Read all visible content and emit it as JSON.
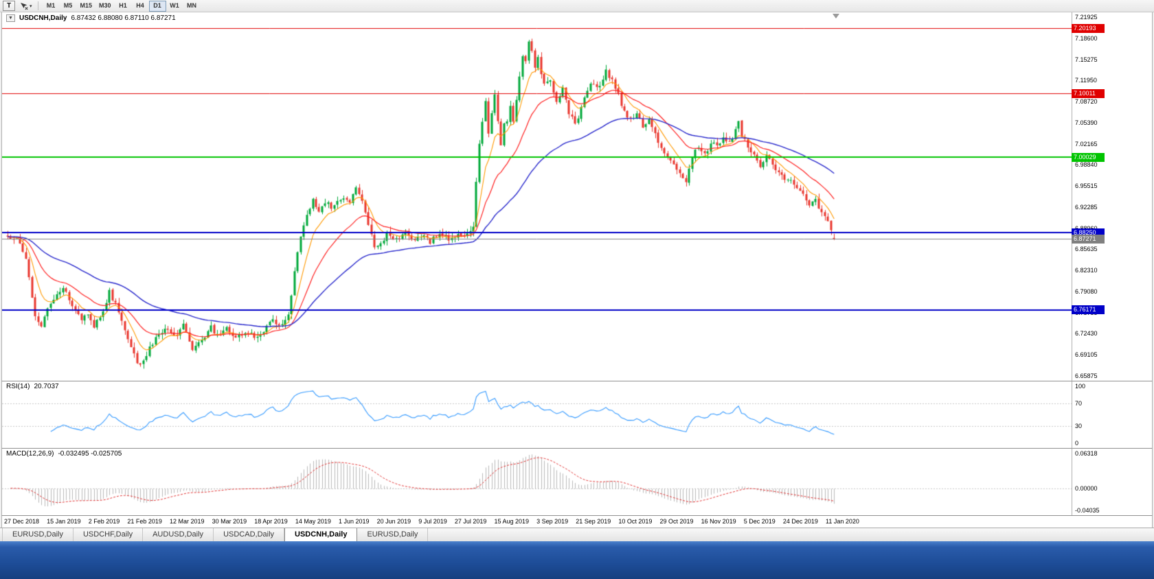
{
  "toolbar": {
    "t_button": "T",
    "cursor_dropdown": "▾",
    "timeframes": [
      {
        "label": "M1",
        "active": false
      },
      {
        "label": "M5",
        "active": false
      },
      {
        "label": "M15",
        "active": false
      },
      {
        "label": "M30",
        "active": false
      },
      {
        "label": "H1",
        "active": false
      },
      {
        "label": "H4",
        "active": false
      },
      {
        "label": "D1",
        "active": true
      },
      {
        "label": "W1",
        "active": false
      },
      {
        "label": "MN",
        "active": false
      }
    ]
  },
  "chart": {
    "collapse_glyph": "▼",
    "title": "USDCNH,Daily",
    "ohlc_text": "6.87432 6.88080 6.87110 6.87271"
  },
  "rsi": {
    "label": "RSI(14)",
    "value": "20.7037",
    "axis_labels": [
      "100",
      "70",
      "30",
      "0"
    ],
    "axis_values": [
      100,
      70,
      30,
      0
    ]
  },
  "macd": {
    "label": "MACD(12,26,9)",
    "values": "-0.032495 -0.025705",
    "axis_labels": [
      "0.06318",
      "0.00000",
      "-0.04035"
    ],
    "axis_values": [
      0.06318,
      0,
      -0.04035
    ]
  },
  "tabs": [
    {
      "label": "EURUSD,Daily",
      "active": false
    },
    {
      "label": "USDCHF,Daily",
      "active": false
    },
    {
      "label": "AUDUSD,Daily",
      "active": false
    },
    {
      "label": "USDCAD,Daily",
      "active": false
    },
    {
      "label": "USDCNH,Daily",
      "active": true
    },
    {
      "label": "EURUSD,Daily",
      "active": false
    }
  ],
  "chart_data": {
    "type": "candlestick",
    "symbol": "USDCNH",
    "timeframe": "Daily",
    "ohlc_current": {
      "open": 6.87432,
      "high": 6.8808,
      "low": 6.8711,
      "close": 6.87271
    },
    "y_range": [
      6.65875,
      7.21925
    ],
    "price_axis_labels": [
      "7.21925",
      "7.18600",
      "7.15275",
      "7.11950",
      "7.08720",
      "7.05390",
      "7.02165",
      "6.98840",
      "6.95515",
      "6.92285",
      "6.88960",
      "6.85635",
      "6.82310",
      "6.79080",
      "6.75755",
      "6.72430",
      "6.69105",
      "6.65875"
    ],
    "x_axis_dates": [
      "27 Dec 2018",
      "15 Jan 2019",
      "2 Feb 2019",
      "21 Feb 2019",
      "12 Mar 2019",
      "30 Mar 2019",
      "18 Apr 2019",
      "14 May 2019",
      "1 Jun 2019",
      "20 Jun 2019",
      "9 Jul 2019",
      "27 Jul 2019",
      "15 Aug 2019",
      "3 Sep 2019",
      "21 Sep 2019",
      "10 Oct 2019",
      "29 Oct 2019",
      "16 Nov 2019",
      "5 Dec 2019",
      "24 Dec 2019",
      "11 Jan 2020"
    ],
    "candles_count": 269,
    "colors": {
      "up": "#00a83a",
      "down": "#e8362d"
    },
    "ma_periods": [
      8,
      21,
      55
    ],
    "ma_colors": {
      "fast": "#ff9900",
      "medium": "#ff2020",
      "slow": "#2929cc"
    },
    "hlines": [
      {
        "label": "7.20193",
        "value": 7.20193,
        "color": "#e00000",
        "width": 1
      },
      {
        "label": "7.10011",
        "value": 7.10011,
        "color": "#e00000",
        "width": 1
      },
      {
        "label": "7.00029",
        "value": 7.00029,
        "color": "#00c400",
        "width": 2
      },
      {
        "label": "6.88250",
        "value": 6.8825,
        "color": "#0000c8",
        "width": 2
      },
      {
        "label": "6.87271",
        "value": 6.87271,
        "color": "#808080",
        "width": 1
      },
      {
        "label": "6.76171",
        "value": 6.76171,
        "color": "#0000c8",
        "width": 2
      }
    ],
    "rsi": {
      "period": 14,
      "current": 20.7037,
      "levels": [
        70,
        30
      ],
      "color": "#3399ff",
      "range": [
        0,
        100
      ]
    },
    "macd": {
      "fast": 12,
      "slow": 26,
      "signal": 9,
      "current_macd": -0.032495,
      "current_signal": -0.025705,
      "range": [
        -0.04035,
        0.06318
      ],
      "hist_color": "#b8b8b8",
      "signal_color": "#e03030"
    },
    "price_path_anchors": [
      [
        0,
        6.878
      ],
      [
        3,
        6.871
      ],
      [
        6,
        6.845
      ],
      [
        9,
        6.752
      ],
      [
        11,
        6.734
      ],
      [
        13,
        6.766
      ],
      [
        16,
        6.788
      ],
      [
        18,
        6.8
      ],
      [
        21,
        6.772
      ],
      [
        24,
        6.748
      ],
      [
        26,
        6.757
      ],
      [
        28,
        6.733
      ],
      [
        31,
        6.762
      ],
      [
        33,
        6.79
      ],
      [
        35,
        6.77
      ],
      [
        38,
        6.728
      ],
      [
        40,
        6.7
      ],
      [
        43,
        6.674
      ],
      [
        46,
        6.701
      ],
      [
        49,
        6.724
      ],
      [
        52,
        6.731
      ],
      [
        54,
        6.72
      ],
      [
        57,
        6.736
      ],
      [
        60,
        6.702
      ],
      [
        63,
        6.713
      ],
      [
        66,
        6.736
      ],
      [
        68,
        6.72
      ],
      [
        71,
        6.732
      ],
      [
        74,
        6.716
      ],
      [
        77,
        6.73
      ],
      [
        80,
        6.721
      ],
      [
        83,
        6.731
      ],
      [
        86,
        6.744
      ],
      [
        89,
        6.739
      ],
      [
        91,
        6.752
      ],
      [
        93,
        6.82
      ],
      [
        95,
        6.878
      ],
      [
        97,
        6.909
      ],
      [
        99,
        6.934
      ],
      [
        101,
        6.918
      ],
      [
        103,
        6.93
      ],
      [
        105,
        6.924
      ],
      [
        107,
        6.931
      ],
      [
        109,
        6.936
      ],
      [
        111,
        6.929
      ],
      [
        113,
        6.953
      ],
      [
        115,
        6.931
      ],
      [
        117,
        6.899
      ],
      [
        119,
        6.856
      ],
      [
        121,
        6.869
      ],
      [
        123,
        6.879
      ],
      [
        125,
        6.869
      ],
      [
        127,
        6.876
      ],
      [
        129,
        6.881
      ],
      [
        131,
        6.871
      ],
      [
        133,
        6.879
      ],
      [
        135,
        6.874
      ],
      [
        137,
        6.869
      ],
      [
        139,
        6.876
      ],
      [
        141,
        6.881
      ],
      [
        143,
        6.874
      ],
      [
        145,
        6.879
      ],
      [
        147,
        6.874
      ],
      [
        149,
        6.879
      ],
      [
        151,
        6.888
      ],
      [
        152,
        6.958
      ],
      [
        153,
        7.021
      ],
      [
        154,
        7.058
      ],
      [
        155,
        7.088
      ],
      [
        156,
        7.041
      ],
      [
        157,
        7.069
      ],
      [
        158,
        7.097
      ],
      [
        159,
        7.061
      ],
      [
        160,
        7.021
      ],
      [
        161,
        7.049
      ],
      [
        162,
        7.059
      ],
      [
        163,
        7.078
      ],
      [
        164,
        7.059
      ],
      [
        165,
        7.089
      ],
      [
        166,
        7.129
      ],
      [
        167,
        7.158
      ],
      [
        168,
        7.148
      ],
      [
        169,
        7.183
      ],
      [
        170,
        7.169
      ],
      [
        171,
        7.141
      ],
      [
        172,
        7.159
      ],
      [
        173,
        7.131
      ],
      [
        174,
        7.111
      ],
      [
        176,
        7.119
      ],
      [
        178,
        7.091
      ],
      [
        180,
        7.109
      ],
      [
        182,
        7.071
      ],
      [
        184,
        7.051
      ],
      [
        186,
        7.079
      ],
      [
        188,
        7.108
      ],
      [
        190,
        7.118
      ],
      [
        192,
        7.108
      ],
      [
        194,
        7.138
      ],
      [
        196,
        7.118
      ],
      [
        198,
        7.098
      ],
      [
        200,
        7.071
      ],
      [
        202,
        7.061
      ],
      [
        204,
        7.069
      ],
      [
        206,
        7.051
      ],
      [
        208,
        7.059
      ],
      [
        210,
        7.041
      ],
      [
        212,
        7.011
      ],
      [
        214,
        7.001
      ],
      [
        216,
        6.991
      ],
      [
        218,
        6.976
      ],
      [
        220,
        6.961
      ],
      [
        222,
        6.999
      ],
      [
        224,
        7.019
      ],
      [
        226,
        7.009
      ],
      [
        228,
        7.019
      ],
      [
        230,
        7.021
      ],
      [
        232,
        7.029
      ],
      [
        234,
        7.021
      ],
      [
        236,
        7.041
      ],
      [
        237,
        7.059
      ],
      [
        238,
        7.031
      ],
      [
        240,
        7.019
      ],
      [
        242,
        7.001
      ],
      [
        244,
        6.986
      ],
      [
        246,
        6.999
      ],
      [
        248,
        6.989
      ],
      [
        250,
        6.976
      ],
      [
        252,
        6.961
      ],
      [
        254,
        6.966
      ],
      [
        256,
        6.956
      ],
      [
        258,
        6.941
      ],
      [
        260,
        6.926
      ],
      [
        262,
        6.931
      ],
      [
        264,
        6.911
      ],
      [
        266,
        6.899
      ],
      [
        267,
        6.886
      ],
      [
        268,
        6.87271
      ]
    ]
  }
}
